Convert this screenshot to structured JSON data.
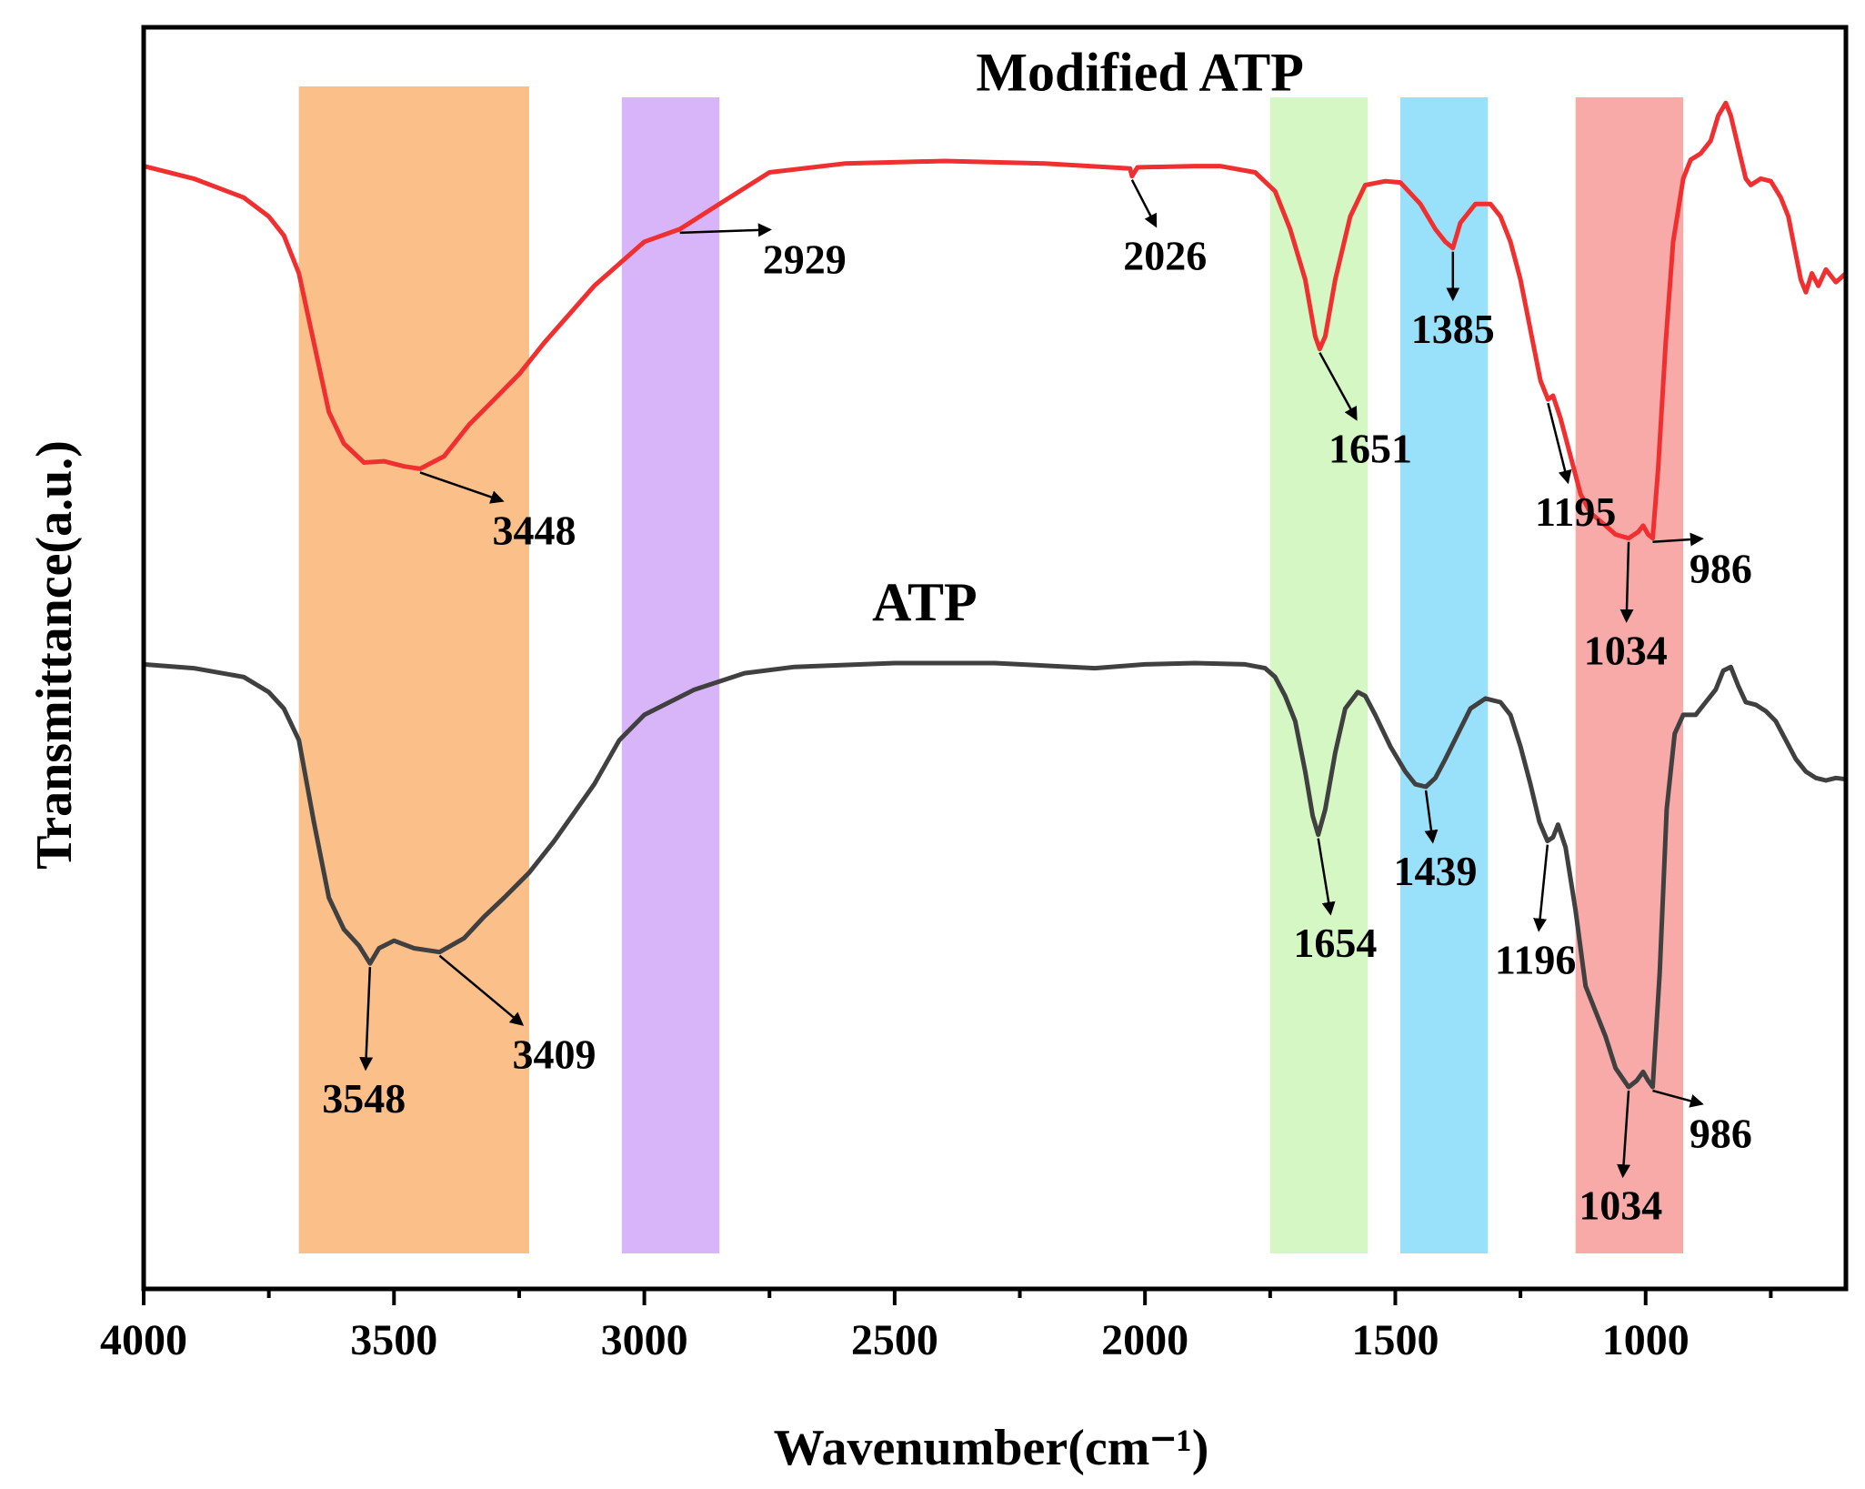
{
  "chart_data": {
    "type": "line",
    "title": "",
    "xlabel": "Wavenumber(cm⁻¹)",
    "ylabel": "Transmittance(a.u.)",
    "xlim": [
      4000,
      600
    ],
    "ylim": [
      0,
      100
    ],
    "x_ticks": [
      4000,
      3500,
      3000,
      2500,
      2000,
      1500,
      1000
    ],
    "x_tick_labels": [
      "4000",
      "3500",
      "3000",
      "2500",
      "2000",
      "1500",
      "1000"
    ],
    "x_minor_ticks": [
      3750,
      3250,
      2750,
      2250,
      1750,
      1250,
      750
    ],
    "bands": [
      {
        "from": 3690,
        "to": 3230,
        "color": "#fbbf8a"
      },
      {
        "from": 3045,
        "to": 2850,
        "color": "#d8b4f8"
      },
      {
        "from": 1750,
        "to": 1555,
        "color": "#d4f7c3"
      },
      {
        "from": 1490,
        "to": 1315,
        "color": "#99e0fa"
      },
      {
        "from": 1140,
        "to": 925,
        "color": "#f8aaa8"
      }
    ],
    "series": [
      {
        "name": "Modified ATP",
        "color": "#f03030",
        "points": [
          [
            4000,
            89
          ],
          [
            3900,
            88
          ],
          [
            3800,
            86.5
          ],
          [
            3750,
            85
          ],
          [
            3720,
            83.5
          ],
          [
            3690,
            80.5
          ],
          [
            3660,
            75
          ],
          [
            3630,
            69.5
          ],
          [
            3600,
            67
          ],
          [
            3560,
            65.5
          ],
          [
            3520,
            65.6
          ],
          [
            3480,
            65.2
          ],
          [
            3448,
            65
          ],
          [
            3400,
            66
          ],
          [
            3350,
            68.5
          ],
          [
            3300,
            70.5
          ],
          [
            3250,
            72.5
          ],
          [
            3200,
            75
          ],
          [
            3100,
            79.5
          ],
          [
            3000,
            83
          ],
          [
            2929,
            84
          ],
          [
            2850,
            86
          ],
          [
            2750,
            88.5
          ],
          [
            2600,
            89.2
          ],
          [
            2400,
            89.4
          ],
          [
            2200,
            89.2
          ],
          [
            2030,
            88.8
          ],
          [
            2026,
            88.2
          ],
          [
            2015,
            88.9
          ],
          [
            1900,
            89
          ],
          [
            1850,
            89
          ],
          [
            1780,
            88.5
          ],
          [
            1740,
            87
          ],
          [
            1710,
            84
          ],
          [
            1680,
            80
          ],
          [
            1660,
            75.5
          ],
          [
            1651,
            74.5
          ],
          [
            1640,
            75.5
          ],
          [
            1620,
            80
          ],
          [
            1590,
            85
          ],
          [
            1560,
            87.5
          ],
          [
            1520,
            87.8
          ],
          [
            1490,
            87.7
          ],
          [
            1450,
            86
          ],
          [
            1420,
            84
          ],
          [
            1400,
            83
          ],
          [
            1385,
            82.5
          ],
          [
            1370,
            84.5
          ],
          [
            1340,
            86
          ],
          [
            1310,
            86
          ],
          [
            1290,
            85
          ],
          [
            1270,
            83
          ],
          [
            1250,
            80
          ],
          [
            1230,
            76
          ],
          [
            1210,
            72
          ],
          [
            1200,
            71
          ],
          [
            1195,
            70.5
          ],
          [
            1185,
            70.8
          ],
          [
            1170,
            69
          ],
          [
            1150,
            66
          ],
          [
            1130,
            63
          ],
          [
            1110,
            61.5
          ],
          [
            1080,
            60.5
          ],
          [
            1060,
            59.8
          ],
          [
            1034,
            59.5
          ],
          [
            1015,
            60
          ],
          [
            1005,
            60.5
          ],
          [
            995,
            59.8
          ],
          [
            986,
            59.5
          ],
          [
            975,
            65
          ],
          [
            960,
            75
          ],
          [
            945,
            83
          ],
          [
            925,
            88
          ],
          [
            910,
            89.5
          ],
          [
            890,
            90
          ],
          [
            870,
            91
          ],
          [
            855,
            93
          ],
          [
            840,
            94
          ],
          [
            830,
            93
          ],
          [
            815,
            90.5
          ],
          [
            800,
            88
          ],
          [
            790,
            87.5
          ],
          [
            770,
            88
          ],
          [
            750,
            87.8
          ],
          [
            730,
            86.5
          ],
          [
            715,
            85
          ],
          [
            700,
            82
          ],
          [
            690,
            80
          ],
          [
            680,
            79
          ],
          [
            668,
            80.5
          ],
          [
            655,
            79.5
          ],
          [
            640,
            80.8
          ],
          [
            620,
            79.8
          ],
          [
            600,
            80.5
          ]
        ]
      },
      {
        "name": "ATP",
        "color": "#404040",
        "points": [
          [
            4000,
            49.5
          ],
          [
            3900,
            49.2
          ],
          [
            3800,
            48.5
          ],
          [
            3750,
            47.3
          ],
          [
            3720,
            46
          ],
          [
            3690,
            43.5
          ],
          [
            3660,
            37
          ],
          [
            3630,
            31
          ],
          [
            3600,
            28.5
          ],
          [
            3570,
            27.2
          ],
          [
            3548,
            25.8
          ],
          [
            3530,
            27
          ],
          [
            3500,
            27.6
          ],
          [
            3460,
            27
          ],
          [
            3409,
            26.7
          ],
          [
            3360,
            27.8
          ],
          [
            3320,
            29.5
          ],
          [
            3280,
            31
          ],
          [
            3230,
            33
          ],
          [
            3180,
            35.5
          ],
          [
            3100,
            40
          ],
          [
            3050,
            43.5
          ],
          [
            3000,
            45.5
          ],
          [
            2900,
            47.5
          ],
          [
            2800,
            48.8
          ],
          [
            2700,
            49.3
          ],
          [
            2500,
            49.6
          ],
          [
            2300,
            49.6
          ],
          [
            2100,
            49.2
          ],
          [
            2000,
            49.5
          ],
          [
            1900,
            49.6
          ],
          [
            1800,
            49.5
          ],
          [
            1760,
            49.2
          ],
          [
            1740,
            48.5
          ],
          [
            1720,
            47
          ],
          [
            1700,
            45
          ],
          [
            1680,
            41
          ],
          [
            1665,
            37.5
          ],
          [
            1654,
            36
          ],
          [
            1640,
            38
          ],
          [
            1620,
            42.5
          ],
          [
            1600,
            46
          ],
          [
            1575,
            47.3
          ],
          [
            1560,
            47
          ],
          [
            1540,
            45.5
          ],
          [
            1510,
            43
          ],
          [
            1480,
            41
          ],
          [
            1460,
            40
          ],
          [
            1439,
            39.8
          ],
          [
            1420,
            40.5
          ],
          [
            1400,
            42
          ],
          [
            1375,
            44
          ],
          [
            1350,
            46
          ],
          [
            1320,
            46.8
          ],
          [
            1290,
            46.5
          ],
          [
            1270,
            45.5
          ],
          [
            1250,
            43
          ],
          [
            1230,
            40
          ],
          [
            1212,
            37
          ],
          [
            1196,
            35.5
          ],
          [
            1185,
            35.8
          ],
          [
            1175,
            36.8
          ],
          [
            1160,
            35
          ],
          [
            1140,
            30
          ],
          [
            1120,
            24
          ],
          [
            1100,
            22
          ],
          [
            1080,
            20
          ],
          [
            1060,
            17.5
          ],
          [
            1034,
            16
          ],
          [
            1018,
            16.5
          ],
          [
            1005,
            17.2
          ],
          [
            995,
            16.5
          ],
          [
            986,
            16
          ],
          [
            972,
            25
          ],
          [
            958,
            38
          ],
          [
            942,
            44
          ],
          [
            925,
            45.5
          ],
          [
            900,
            45.5
          ],
          [
            880,
            46.5
          ],
          [
            860,
            47.5
          ],
          [
            845,
            49
          ],
          [
            830,
            49.3
          ],
          [
            815,
            47.8
          ],
          [
            800,
            46.5
          ],
          [
            780,
            46.3
          ],
          [
            760,
            45.8
          ],
          [
            740,
            45
          ],
          [
            720,
            43.5
          ],
          [
            700,
            42
          ],
          [
            680,
            41
          ],
          [
            660,
            40.5
          ],
          [
            640,
            40.3
          ],
          [
            620,
            40.5
          ],
          [
            600,
            40.4
          ]
        ]
      }
    ],
    "series_labels": [
      {
        "text": "Modified ATP",
        "x": 2010,
        "y": 95
      },
      {
        "text": "ATP",
        "x": 2440,
        "y": 53
      }
    ],
    "annotations": [
      {
        "text": "3448",
        "target": [
          3448,
          65
        ],
        "label": [
          3220,
          59
        ]
      },
      {
        "text": "2929",
        "target": [
          2929,
          84
        ],
        "label": [
          2680,
          80.5
        ]
      },
      {
        "text": "2026",
        "target": [
          2026,
          88.2
        ],
        "label": [
          1960,
          80.8
        ]
      },
      {
        "text": "1651",
        "target": [
          1651,
          74.5
        ],
        "label": [
          1550,
          65.5
        ]
      },
      {
        "text": "1385",
        "target": [
          1385,
          82.5
        ],
        "label": [
          1385,
          75
        ]
      },
      {
        "text": "1195",
        "target": [
          1195,
          70.5
        ],
        "label": [
          1140,
          60.5
        ]
      },
      {
        "text": "1034",
        "target": [
          1034,
          59.5
        ],
        "label": [
          1040,
          49.5
        ]
      },
      {
        "text": "986",
        "target": [
          986,
          59.5
        ],
        "label": [
          850,
          56
        ]
      },
      {
        "text": "3548",
        "target": [
          3548,
          25.8
        ],
        "label": [
          3560,
          14
        ]
      },
      {
        "text": "3409",
        "target": [
          3409,
          26.7
        ],
        "label": [
          3180,
          17.5
        ]
      },
      {
        "text": "1654",
        "target": [
          1654,
          36
        ],
        "label": [
          1620,
          26.3
        ]
      },
      {
        "text": "1439",
        "target": [
          1439,
          39.8
        ],
        "label": [
          1420,
          32
        ]
      },
      {
        "text": "1196",
        "target": [
          1196,
          35.5
        ],
        "label": [
          1220,
          25
        ]
      },
      {
        "text": "1034",
        "target": [
          1034,
          16
        ],
        "label": [
          1050,
          5.5
        ]
      },
      {
        "text": "986",
        "target": [
          986,
          16
        ],
        "label": [
          850,
          11.2
        ]
      }
    ]
  }
}
